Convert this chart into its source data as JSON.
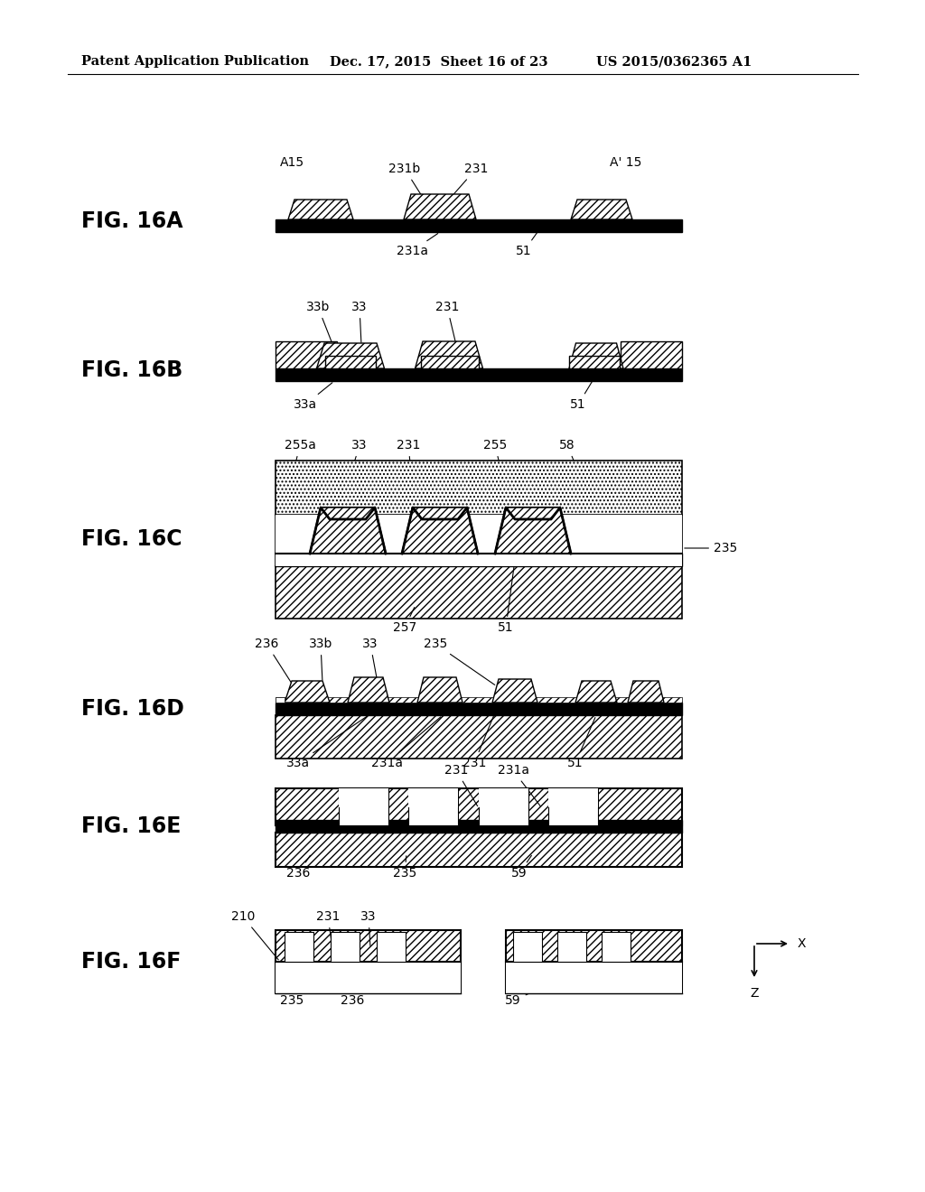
{
  "header1": "Patent Application Publication",
  "header2": "Dec. 17, 2015  Sheet 16 of 23",
  "header3": "US 2015/0362365 A1",
  "bg_color": "#ffffff",
  "lc": "#000000",
  "fig_label_fontsize": 17,
  "annot_fontsize": 10,
  "header_fontsize": 10.5
}
